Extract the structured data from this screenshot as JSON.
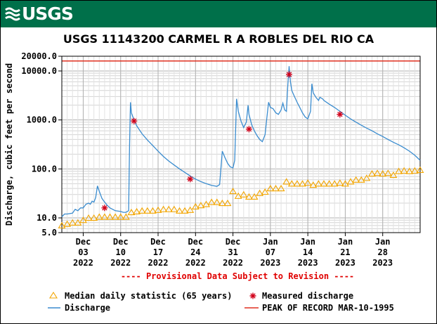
{
  "header": {
    "logo_text": "USGS"
  },
  "chart_data": {
    "type": "line",
    "title": "USGS 11143200 CARMEL R A ROBLES DEL RIO CA",
    "ylabel": "Discharge, cubic feet per second",
    "y_scale": "log",
    "ylim": [
      5.0,
      20000.0
    ],
    "y_ticks": [
      {
        "value": 5.0,
        "label": "5.0"
      },
      {
        "value": 10.0,
        "label": "10.0"
      },
      {
        "value": 100.0,
        "label": "100.0"
      },
      {
        "value": 1000.0,
        "label": "1000.0"
      },
      {
        "value": 10000.0,
        "label": "10000.0"
      },
      {
        "value": 20000.0,
        "label": "20000.0"
      }
    ],
    "x_ticks": [
      {
        "date": "2022-12-03",
        "lines": [
          "Dec",
          "03",
          "2022"
        ]
      },
      {
        "date": "2022-12-10",
        "lines": [
          "Dec",
          "10",
          "2022"
        ]
      },
      {
        "date": "2022-12-17",
        "lines": [
          "Dec",
          "17",
          "2022"
        ]
      },
      {
        "date": "2022-12-24",
        "lines": [
          "Dec",
          "24",
          "2022"
        ]
      },
      {
        "date": "2022-12-31",
        "lines": [
          "Dec",
          "31",
          "2022"
        ]
      },
      {
        "date": "2023-01-07",
        "lines": [
          "Jan",
          "07",
          "2023"
        ]
      },
      {
        "date": "2023-01-14",
        "lines": [
          "Jan",
          "14",
          "2023"
        ]
      },
      {
        "date": "2023-01-21",
        "lines": [
          "Jan",
          "21",
          "2023"
        ]
      },
      {
        "date": "2023-01-28",
        "lines": [
          "Jan",
          "28",
          "2023"
        ]
      }
    ],
    "xlim": [
      "2022-11-29",
      "2023-02-04"
    ],
    "provisional_note": "---- Provisional Data Subject to Revision ----",
    "peak_of_record": 16000,
    "colors": {
      "discharge": "#3a8ccf",
      "median": "#f2a500",
      "measured": "#d0021b",
      "peak": "#e03020",
      "note": "#e00000"
    },
    "series": [
      {
        "name": "Discharge",
        "points": [
          [
            "2022-11-29",
            10.5
          ],
          [
            "2022-11-29T12",
            12
          ],
          [
            "2022-11-30",
            12
          ],
          [
            "2022-12-01",
            12.5
          ],
          [
            "2022-12-01T12",
            15
          ],
          [
            "2022-12-02",
            14
          ],
          [
            "2022-12-02T12",
            16
          ],
          [
            "2022-12-03",
            16
          ],
          [
            "2022-12-03T12",
            19
          ],
          [
            "2022-12-04",
            20
          ],
          [
            "2022-12-04T08",
            19
          ],
          [
            "2022-12-04T16",
            22
          ],
          [
            "2022-12-05",
            21
          ],
          [
            "2022-12-05T08",
            26
          ],
          [
            "2022-12-05T16",
            45
          ],
          [
            "2022-12-06",
            35
          ],
          [
            "2022-12-06T12",
            25
          ],
          [
            "2022-12-07",
            21
          ],
          [
            "2022-12-07T12",
            18
          ],
          [
            "2022-12-08",
            16
          ],
          [
            "2022-12-08T12",
            15
          ],
          [
            "2022-12-09",
            14
          ],
          [
            "2022-12-10",
            13.5
          ],
          [
            "2022-12-10T12",
            13
          ],
          [
            "2022-12-11",
            13
          ],
          [
            "2022-12-11T12",
            14
          ],
          [
            "2022-12-11T16",
            300
          ],
          [
            "2022-12-11T20",
            2300
          ],
          [
            "2022-12-12",
            1400
          ],
          [
            "2022-12-12T12",
            1000
          ],
          [
            "2022-12-13",
            760
          ],
          [
            "2022-12-14",
            520
          ],
          [
            "2022-12-15",
            390
          ],
          [
            "2022-12-16",
            300
          ],
          [
            "2022-12-17",
            230
          ],
          [
            "2022-12-18",
            180
          ],
          [
            "2022-12-19",
            145
          ],
          [
            "2022-12-20",
            120
          ],
          [
            "2022-12-21",
            100
          ],
          [
            "2022-12-22",
            85
          ],
          [
            "2022-12-23",
            72
          ],
          [
            "2022-12-24",
            62
          ],
          [
            "2022-12-25",
            55
          ],
          [
            "2022-12-26",
            50
          ],
          [
            "2022-12-27",
            46
          ],
          [
            "2022-12-28",
            44
          ],
          [
            "2022-12-28T12",
            48
          ],
          [
            "2022-12-29",
            230
          ],
          [
            "2022-12-29T12",
            170
          ],
          [
            "2022-12-30",
            130
          ],
          [
            "2022-12-30T12",
            110
          ],
          [
            "2022-12-31",
            105
          ],
          [
            "2022-12-31T08",
            150
          ],
          [
            "2022-12-31T16",
            2700
          ],
          [
            "2023-01-01",
            1500
          ],
          [
            "2023-01-01T12",
            950
          ],
          [
            "2023-01-02",
            700
          ],
          [
            "2023-01-02T12",
            900
          ],
          [
            "2023-01-02T20",
            2000
          ],
          [
            "2023-01-03",
            1300
          ],
          [
            "2023-01-03T12",
            800
          ],
          [
            "2023-01-04",
            600
          ],
          [
            "2023-01-04T12",
            480
          ],
          [
            "2023-01-05",
            400
          ],
          [
            "2023-01-05T12",
            360
          ],
          [
            "2023-01-06",
            500
          ],
          [
            "2023-01-06T08",
            1100
          ],
          [
            "2023-01-06T16",
            2300
          ],
          [
            "2023-01-07",
            1800
          ],
          [
            "2023-01-07T12",
            1700
          ],
          [
            "2023-01-08",
            1400
          ],
          [
            "2023-01-08T12",
            1300
          ],
          [
            "2023-01-09",
            1600
          ],
          [
            "2023-01-09T08",
            2200
          ],
          [
            "2023-01-09T16",
            1600
          ],
          [
            "2023-01-10",
            1500
          ],
          [
            "2023-01-10T06",
            5000
          ],
          [
            "2023-01-10T12",
            12500
          ],
          [
            "2023-01-10T18",
            6000
          ],
          [
            "2023-01-11",
            4000
          ],
          [
            "2023-01-11T12",
            3000
          ],
          [
            "2023-01-12",
            2300
          ],
          [
            "2023-01-12T12",
            1800
          ],
          [
            "2023-01-13",
            1400
          ],
          [
            "2023-01-13T12",
            1150
          ],
          [
            "2023-01-14",
            1050
          ],
          [
            "2023-01-14T12",
            1500
          ],
          [
            "2023-01-14T18",
            5500
          ],
          [
            "2023-01-15",
            3600
          ],
          [
            "2023-01-15T12",
            2900
          ],
          [
            "2023-01-16",
            2500
          ],
          [
            "2023-01-16T06",
            2900
          ],
          [
            "2023-01-16T18",
            2700
          ],
          [
            "2023-01-17",
            2500
          ],
          [
            "2023-01-18",
            2100
          ],
          [
            "2023-01-19",
            1800
          ],
          [
            "2023-01-20",
            1500
          ],
          [
            "2023-01-21",
            1250
          ],
          [
            "2023-01-22",
            1050
          ],
          [
            "2023-01-23",
            900
          ],
          [
            "2023-01-24",
            780
          ],
          [
            "2023-01-25",
            680
          ],
          [
            "2023-01-26",
            600
          ],
          [
            "2023-01-27",
            520
          ],
          [
            "2023-01-28",
            460
          ],
          [
            "2023-01-29",
            400
          ],
          [
            "2023-01-30",
            350
          ],
          [
            "2023-01-31",
            310
          ],
          [
            "2023-02-01",
            270
          ],
          [
            "2023-02-02",
            230
          ],
          [
            "2023-02-03",
            190
          ],
          [
            "2023-02-04",
            150
          ]
        ]
      },
      {
        "name": "Median daily statistic (65 years)",
        "points": [
          [
            "2022-11-29",
            7
          ],
          [
            "2022-11-30",
            7.5
          ],
          [
            "2022-12-01",
            8
          ],
          [
            "2022-12-02",
            8
          ],
          [
            "2022-12-03",
            9
          ],
          [
            "2022-12-04",
            10
          ],
          [
            "2022-12-05",
            10
          ],
          [
            "2022-12-06",
            10.5
          ],
          [
            "2022-12-07",
            10.5
          ],
          [
            "2022-12-08",
            10.5
          ],
          [
            "2022-12-09",
            10.5
          ],
          [
            "2022-12-10",
            10.5
          ],
          [
            "2022-12-11",
            10.5
          ],
          [
            "2022-12-12",
            13
          ],
          [
            "2022-12-13",
            13.5
          ],
          [
            "2022-12-14",
            14
          ],
          [
            "2022-12-15",
            14
          ],
          [
            "2022-12-16",
            14
          ],
          [
            "2022-12-17",
            14.5
          ],
          [
            "2022-12-18",
            15
          ],
          [
            "2022-12-19",
            15
          ],
          [
            "2022-12-20",
            15
          ],
          [
            "2022-12-21",
            14
          ],
          [
            "2022-12-22",
            14
          ],
          [
            "2022-12-23",
            14.5
          ],
          [
            "2022-12-24",
            17
          ],
          [
            "2022-12-25",
            18
          ],
          [
            "2022-12-26",
            19
          ],
          [
            "2022-12-27",
            21
          ],
          [
            "2022-12-28",
            21
          ],
          [
            "2022-12-29",
            20
          ],
          [
            "2022-12-30",
            20
          ],
          [
            "2022-12-31",
            35
          ],
          [
            "2023-01-01",
            28
          ],
          [
            "2023-01-02",
            30
          ],
          [
            "2023-01-03",
            27
          ],
          [
            "2023-01-04",
            27
          ],
          [
            "2023-01-05",
            32
          ],
          [
            "2023-01-06",
            34
          ],
          [
            "2023-01-07",
            40
          ],
          [
            "2023-01-08",
            40
          ],
          [
            "2023-01-09",
            40
          ],
          [
            "2023-01-10",
            55
          ],
          [
            "2023-01-11",
            50
          ],
          [
            "2023-01-12",
            50
          ],
          [
            "2023-01-13",
            50
          ],
          [
            "2023-01-14",
            52
          ],
          [
            "2023-01-15",
            47
          ],
          [
            "2023-01-16",
            50
          ],
          [
            "2023-01-17",
            50
          ],
          [
            "2023-01-18",
            50
          ],
          [
            "2023-01-19",
            50
          ],
          [
            "2023-01-20",
            52
          ],
          [
            "2023-01-21",
            50
          ],
          [
            "2023-01-22",
            55
          ],
          [
            "2023-01-23",
            60
          ],
          [
            "2023-01-24",
            60
          ],
          [
            "2023-01-25",
            65
          ],
          [
            "2023-01-26",
            80
          ],
          [
            "2023-01-27",
            82
          ],
          [
            "2023-01-28",
            80
          ],
          [
            "2023-01-29",
            82
          ],
          [
            "2023-01-30",
            75
          ],
          [
            "2023-01-31",
            90
          ],
          [
            "2023-02-01",
            92
          ],
          [
            "2023-02-02",
            90
          ],
          [
            "2023-02-03",
            92
          ],
          [
            "2023-02-04",
            95
          ]
        ]
      },
      {
        "name": "Measured discharge",
        "points": [
          [
            "2022-12-07",
            16
          ],
          [
            "2022-12-12T12",
            950
          ],
          [
            "2022-12-23",
            62
          ],
          [
            "2023-01-03",
            650
          ],
          [
            "2023-01-10T12",
            8500
          ],
          [
            "2023-01-20",
            1300
          ]
        ]
      }
    ],
    "legend": {
      "median": "Median daily statistic (65 years)",
      "measured": "Measured discharge",
      "discharge": "Discharge",
      "peak": "PEAK OF RECORD MAR-10-1995"
    }
  }
}
